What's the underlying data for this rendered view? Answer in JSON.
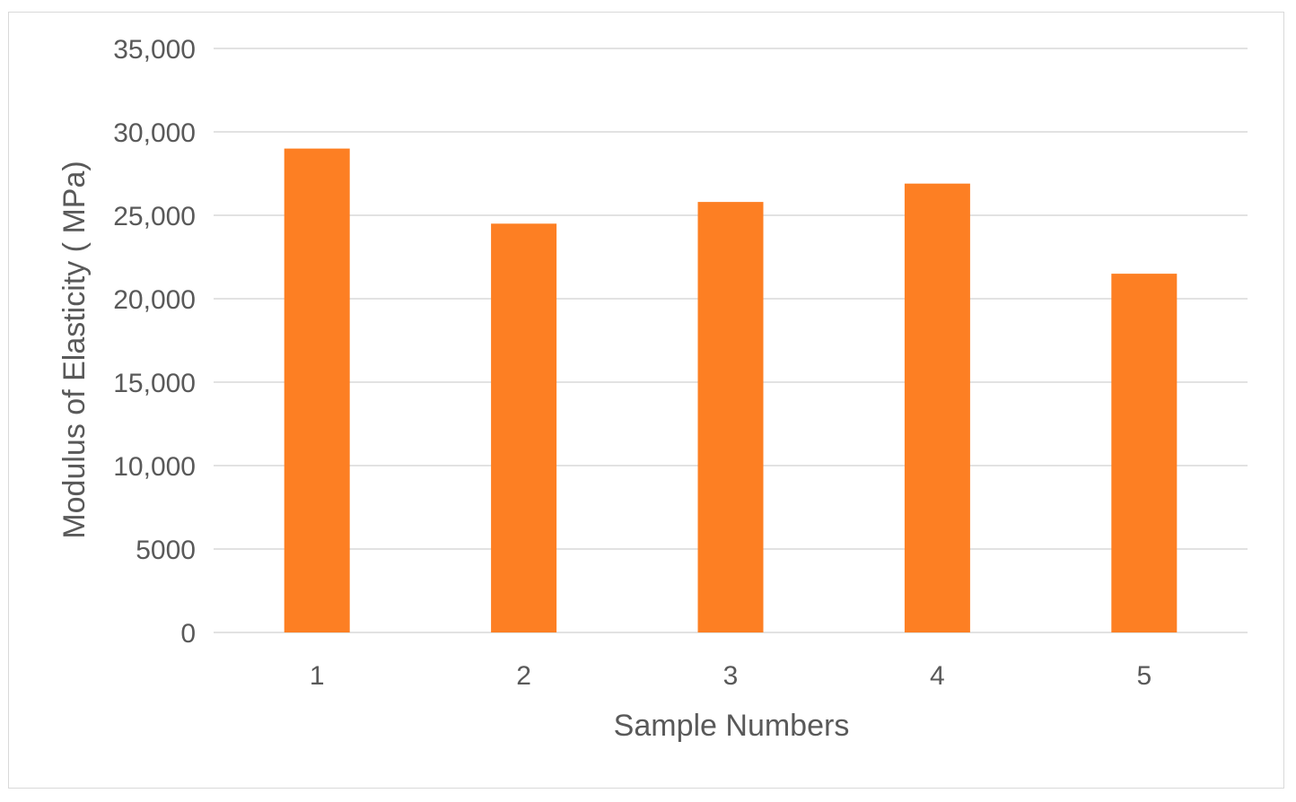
{
  "chart_data": {
    "type": "bar",
    "title": "",
    "xlabel": "Sample Numbers",
    "ylabel": "Modulus of Elasticity ( MPa)",
    "categories": [
      "1",
      "2",
      "3",
      "4",
      "5"
    ],
    "values": [
      29000,
      24500,
      25800,
      26900,
      21500
    ],
    "ylim": [
      0,
      35000
    ],
    "yticks": [
      0,
      5000,
      10000,
      15000,
      20000,
      25000,
      30000,
      35000
    ],
    "ytick_labels": [
      "0",
      "5000",
      "10,000",
      "15,000",
      "20,000",
      "25,000",
      "30,000",
      "35,000"
    ],
    "grid": true,
    "legend": "none",
    "bar_color": "#fd7f23",
    "grid_color": "#d9d9d9"
  }
}
